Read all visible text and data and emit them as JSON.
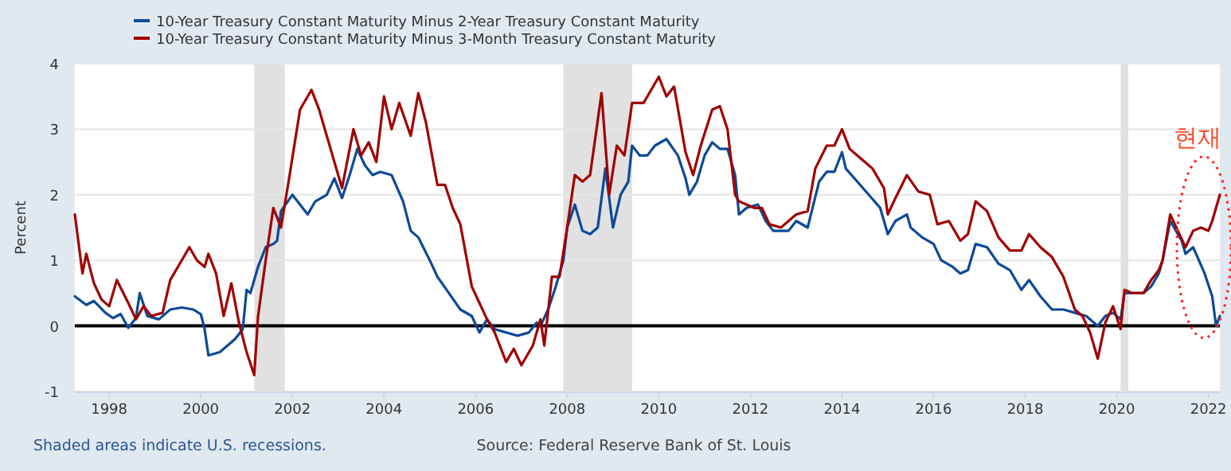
{
  "chart_data": {
    "type": "line",
    "ylabel": "Percent",
    "legend": "top left",
    "grid": "y",
    "xlim": [
      "1997-04",
      "2022-04"
    ],
    "xticks": [
      "1998",
      "2000",
      "2002",
      "2004",
      "2006",
      "2008",
      "2010",
      "2012",
      "2014",
      "2016",
      "2018",
      "2020",
      "2022"
    ],
    "ylim": [
      -1,
      4
    ],
    "yticks": [
      -1,
      0,
      1,
      2,
      3,
      4
    ],
    "ref_lines": [
      {
        "axis": "y",
        "value": 0,
        "color": "#000000"
      }
    ],
    "bands": [
      {
        "axis": "x",
        "from": "2001-03",
        "to": "2001-11",
        "color": "#e1e1e1"
      },
      {
        "axis": "x",
        "from": "2007-12",
        "to": "2009-06",
        "color": "#e1e1e1"
      },
      {
        "axis": "x",
        "from": "2020-02",
        "to": "2020-04",
        "color": "#e1e1e1"
      }
    ],
    "annotations": [
      "Shaded areas indicate U.S. recessions.",
      "Source: Federal Reserve Bank of St. Louis",
      "현재"
    ],
    "series": [
      {
        "name": "10-Year Treasury Constant Maturity Minus 2-Year Treasury Constant Maturity",
        "color": "#0c4a97",
        "x": [
          "1997-04",
          "1997-07",
          "1997-09",
          "1997-12",
          "1998-02",
          "1998-04",
          "1998-06",
          "1998-08",
          "1998-09",
          "1998-11",
          "1999-02",
          "1999-05",
          "1999-08",
          "1999-11",
          "2000-01",
          "2000-02",
          "2000-03",
          "2000-06",
          "2000-09",
          "2000-10",
          "2000-12",
          "2001-01",
          "2001-02",
          "2001-04",
          "2001-06",
          "2001-08",
          "2001-09",
          "2001-10",
          "2002-01",
          "2002-05",
          "2002-07",
          "2002-10",
          "2002-12",
          "2003-02",
          "2003-04",
          "2003-06",
          "2003-08",
          "2003-10",
          "2003-12",
          "2004-03",
          "2004-06",
          "2004-08",
          "2004-10",
          "2005-01",
          "2005-03",
          "2005-06",
          "2005-09",
          "2005-12",
          "2006-02",
          "2006-04",
          "2006-06",
          "2006-09",
          "2006-12",
          "2007-03",
          "2007-05",
          "2007-06",
          "2007-08",
          "2007-10",
          "2007-12",
          "2008-01",
          "2008-03",
          "2008-05",
          "2008-07",
          "2008-09",
          "2008-11",
          "2009-01",
          "2009-03",
          "2009-05",
          "2009-06",
          "2009-08",
          "2009-10",
          "2009-12",
          "2010-03",
          "2010-06",
          "2010-08",
          "2010-09",
          "2010-11",
          "2011-01",
          "2011-03",
          "2011-05",
          "2011-07",
          "2011-09",
          "2011-10",
          "2011-12",
          "2012-03",
          "2012-05",
          "2012-07",
          "2012-09",
          "2012-11",
          "2013-01",
          "2013-04",
          "2013-07",
          "2013-09",
          "2013-11",
          "2014-01",
          "2014-02",
          "2014-05",
          "2014-08",
          "2014-11",
          "2015-01",
          "2015-03",
          "2015-06",
          "2015-07",
          "2015-10",
          "2016-01",
          "2016-03",
          "2016-06",
          "2016-08",
          "2016-10",
          "2016-12",
          "2017-03",
          "2017-06",
          "2017-09",
          "2017-12",
          "2018-02",
          "2018-05",
          "2018-08",
          "2018-11",
          "2019-02",
          "2019-05",
          "2019-08",
          "2019-10",
          "2019-12",
          "2020-02",
          "2020-03",
          "2020-05",
          "2020-08",
          "2020-10",
          "2020-12",
          "2021-01",
          "2021-03",
          "2021-06",
          "2021-07",
          "2021-09",
          "2021-12",
          "2022-02",
          "2022-03",
          "2022-04"
        ],
        "values": [
          0.45,
          0.32,
          0.38,
          0.2,
          0.12,
          0.18,
          -0.03,
          0.12,
          0.5,
          0.15,
          0.1,
          0.25,
          0.28,
          0.25,
          0.18,
          -0.05,
          -0.45,
          -0.4,
          -0.25,
          -0.2,
          -0.05,
          0.55,
          0.5,
          0.9,
          1.2,
          1.25,
          1.3,
          1.75,
          2.0,
          1.7,
          1.9,
          2.0,
          2.25,
          1.95,
          2.3,
          2.7,
          2.45,
          2.3,
          2.35,
          2.3,
          1.9,
          1.45,
          1.35,
          1.0,
          0.75,
          0.5,
          0.25,
          0.15,
          -0.1,
          0.1,
          -0.05,
          -0.1,
          -0.15,
          -0.1,
          0.05,
          0.0,
          0.25,
          0.6,
          1.0,
          1.5,
          1.85,
          1.45,
          1.4,
          1.5,
          2.4,
          1.5,
          2.0,
          2.2,
          2.75,
          2.6,
          2.6,
          2.75,
          2.85,
          2.6,
          2.25,
          2.0,
          2.2,
          2.6,
          2.8,
          2.7,
          2.7,
          2.3,
          1.7,
          1.8,
          1.85,
          1.6,
          1.45,
          1.45,
          1.45,
          1.6,
          1.5,
          2.2,
          2.35,
          2.35,
          2.65,
          2.4,
          2.2,
          2.0,
          1.8,
          1.4,
          1.6,
          1.7,
          1.5,
          1.35,
          1.25,
          1.0,
          0.9,
          0.8,
          0.85,
          1.25,
          1.2,
          0.95,
          0.85,
          0.55,
          0.7,
          0.45,
          0.25,
          0.25,
          0.2,
          0.15,
          0.0,
          0.15,
          0.2,
          0.1,
          0.5,
          0.5,
          0.5,
          0.6,
          0.8,
          1.0,
          1.6,
          1.3,
          1.1,
          1.2,
          0.8,
          0.45,
          0.0,
          0.15
        ]
      },
      {
        "name": "10-Year Treasury Constant Maturity Minus 3-Month Treasury Constant Maturity",
        "color": "#a00000",
        "x": [
          "1997-04",
          "1997-06",
          "1997-07",
          "1997-09",
          "1997-11",
          "1998-01",
          "1998-03",
          "1998-06",
          "1998-08",
          "1998-10",
          "1998-12",
          "1999-03",
          "1999-05",
          "1999-08",
          "1999-10",
          "1999-12",
          "2000-02",
          "2000-03",
          "2000-05",
          "2000-07",
          "2000-09",
          "2000-11",
          "2001-01",
          "2001-03",
          "2001-04",
          "2001-06",
          "2001-08",
          "2001-10",
          "2001-12",
          "2002-03",
          "2002-06",
          "2002-08",
          "2002-11",
          "2003-02",
          "2003-05",
          "2003-07",
          "2003-09",
          "2003-11",
          "2004-01",
          "2004-03",
          "2004-05",
          "2004-08",
          "2004-10",
          "2004-12",
          "2005-03",
          "2005-05",
          "2005-07",
          "2005-09",
          "2005-12",
          "2006-02",
          "2006-04",
          "2006-06",
          "2006-09",
          "2006-11",
          "2007-01",
          "2007-04",
          "2007-06",
          "2007-07",
          "2007-09",
          "2007-11",
          "2008-01",
          "2008-03",
          "2008-05",
          "2008-07",
          "2008-10",
          "2008-12",
          "2009-02",
          "2009-04",
          "2009-06",
          "2009-09",
          "2009-11",
          "2010-01",
          "2010-03",
          "2010-05",
          "2010-08",
          "2010-10",
          "2010-12",
          "2011-03",
          "2011-05",
          "2011-07",
          "2011-09",
          "2011-10",
          "2012-02",
          "2012-04",
          "2012-06",
          "2012-09",
          "2013-01",
          "2013-04",
          "2013-06",
          "2013-09",
          "2013-11",
          "2014-01",
          "2014-03",
          "2014-06",
          "2014-09",
          "2014-12",
          "2015-01",
          "2015-03",
          "2015-06",
          "2015-09",
          "2015-12",
          "2016-02",
          "2016-05",
          "2016-08",
          "2016-10",
          "2016-12",
          "2017-03",
          "2017-06",
          "2017-09",
          "2017-12",
          "2018-02",
          "2018-05",
          "2018-08",
          "2018-11",
          "2019-02",
          "2019-04",
          "2019-06",
          "2019-08",
          "2019-10",
          "2019-12",
          "2020-02",
          "2020-03",
          "2020-05",
          "2020-08",
          "2020-10",
          "2020-12",
          "2021-01",
          "2021-03",
          "2021-05",
          "2021-07",
          "2021-09",
          "2021-11",
          "2022-01",
          "2022-02",
          "2022-04"
        ],
        "values": [
          1.7,
          0.8,
          1.1,
          0.65,
          0.4,
          0.3,
          0.7,
          0.35,
          0.1,
          0.3,
          0.15,
          0.2,
          0.7,
          1.0,
          1.2,
          1.0,
          0.9,
          1.1,
          0.8,
          0.15,
          0.65,
          0.05,
          -0.4,
          -0.75,
          0.15,
          1.0,
          1.8,
          1.5,
          2.2,
          3.3,
          3.6,
          3.3,
          2.7,
          2.1,
          3.0,
          2.6,
          2.8,
          2.5,
          3.5,
          3.0,
          3.4,
          2.9,
          3.55,
          3.1,
          2.15,
          2.15,
          1.8,
          1.55,
          0.6,
          0.35,
          0.1,
          -0.1,
          -0.55,
          -0.35,
          -0.6,
          -0.3,
          0.1,
          -0.3,
          0.75,
          0.75,
          1.5,
          2.3,
          2.2,
          2.3,
          3.55,
          2.0,
          2.75,
          2.6,
          3.4,
          3.4,
          3.6,
          3.8,
          3.5,
          3.65,
          2.65,
          2.3,
          2.75,
          3.3,
          3.35,
          3.0,
          2.0,
          1.9,
          1.8,
          1.8,
          1.55,
          1.5,
          1.7,
          1.75,
          2.4,
          2.75,
          2.75,
          3.0,
          2.7,
          2.55,
          2.4,
          2.1,
          1.7,
          1.95,
          2.3,
          2.05,
          2.0,
          1.55,
          1.6,
          1.3,
          1.4,
          1.9,
          1.75,
          1.35,
          1.15,
          1.15,
          1.4,
          1.2,
          1.05,
          0.75,
          0.25,
          0.15,
          -0.1,
          -0.5,
          0.05,
          0.3,
          -0.05,
          0.55,
          0.5,
          0.5,
          0.7,
          0.85,
          1.0,
          1.7,
          1.45,
          1.2,
          1.45,
          1.5,
          1.45,
          1.6,
          2.0
        ]
      }
    ]
  }
}
